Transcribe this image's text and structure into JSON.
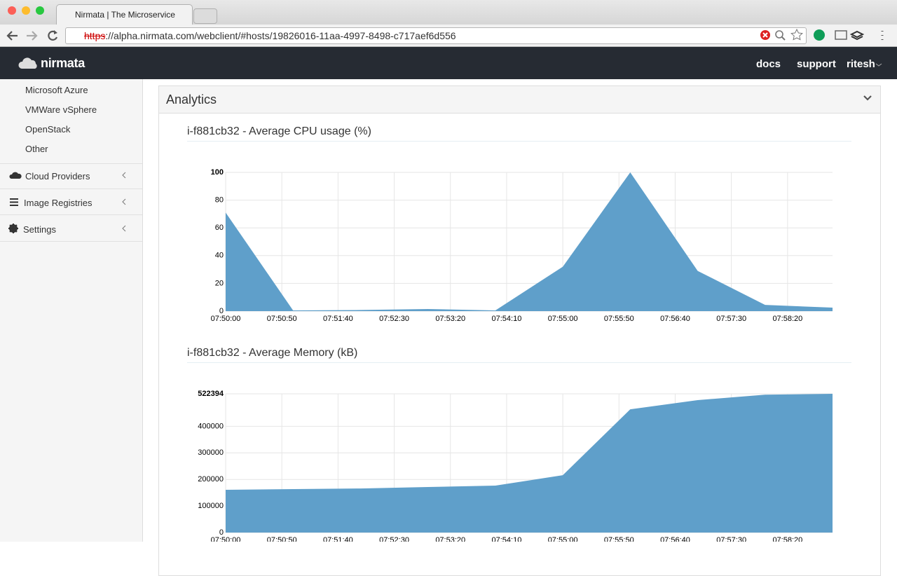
{
  "browser": {
    "tab_title": "Nirmata | The Microservice",
    "url_scheme": "https",
    "url_rest": "://alpha.nirmata.com/webclient/#hosts/19826016-11aa-4997-8498-c717aef6d556"
  },
  "navbar": {
    "brand": "nirmata",
    "links": [
      "docs",
      "support",
      "ritesh"
    ]
  },
  "sidebar": {
    "sub_items": [
      "Microsoft Azure",
      "VMWare vSphere",
      "OpenStack",
      "Other"
    ],
    "items": [
      "Cloud Providers",
      "Image Registries",
      "Settings"
    ]
  },
  "panel": {
    "title": "Analytics"
  },
  "chart_data": [
    {
      "type": "area",
      "title": "i-f881cb32 - Average CPU usage (%)",
      "x": [
        "07:50:00",
        "07:51:00",
        "07:52:00",
        "07:53:00",
        "07:54:00",
        "07:55:00",
        "07:56:00",
        "07:57:00",
        "07:58:00",
        "07:59:00"
      ],
      "values": [
        71,
        0.5,
        0.8,
        1.5,
        0.5,
        32,
        100,
        29,
        4.5,
        2.5
      ],
      "color": "#5f9fca",
      "xlim": [
        "07:50:00",
        "07:59:00"
      ],
      "xticks": [
        "07:50:00",
        "07:50:50",
        "07:51:40",
        "07:52:30",
        "07:53:20",
        "07:54:10",
        "07:55:00",
        "07:55:50",
        "07:56:40",
        "07:57:30",
        "07:58:20"
      ],
      "ylim": [
        0,
        100
      ],
      "yticks": [
        0,
        20,
        40,
        60,
        80,
        100
      ],
      "grid": true
    },
    {
      "type": "area",
      "title": "i-f881cb32 - Average Memory (kB)",
      "x": [
        "07:50:00",
        "07:51:00",
        "07:52:00",
        "07:53:00",
        "07:54:00",
        "07:55:00",
        "07:56:00",
        "07:57:00",
        "07:58:00",
        "07:59:00"
      ],
      "values": [
        161000,
        163600,
        166000,
        171500,
        176800,
        216000,
        464000,
        498700,
        519000,
        522394
      ],
      "color": "#5f9fca",
      "xlim": [
        "07:50:00",
        "07:59:00"
      ],
      "xticks": [
        "07:50:00",
        "07:50:50",
        "07:51:40",
        "07:52:30",
        "07:53:20",
        "07:54:10",
        "07:55:00",
        "07:55:50",
        "07:56:40",
        "07:57:30",
        "07:58:20"
      ],
      "ylim": [
        0,
        522394
      ],
      "yticks": [
        0,
        100000,
        200000,
        300000,
        400000,
        522394
      ],
      "grid": true
    }
  ]
}
